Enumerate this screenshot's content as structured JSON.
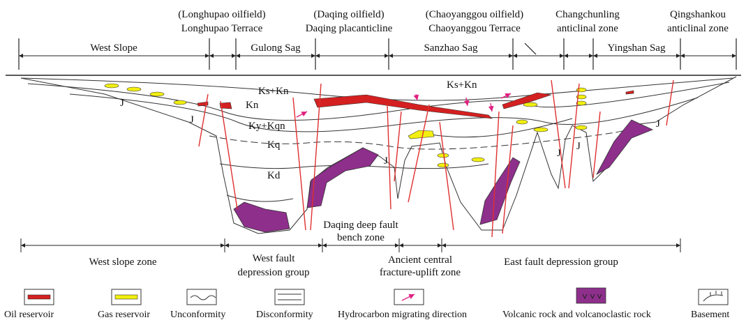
{
  "top_labels": [
    [
      "(Longhupao oilfield)",
      "Longhupao Terrace"
    ],
    [
      "(Daqing oilfield)",
      "Daqing placanticline"
    ],
    [
      "(Chaoyanggou oilfield)",
      "Chaoyanggou Terrace"
    ],
    [
      "Changchunling",
      "anticlinal zone"
    ],
    [
      "Qingshankou",
      "anticlinal zone"
    ]
  ],
  "units": [
    "West Slope",
    "Gulong Sag",
    "Sanzhao Sag",
    "Yingshan Sag"
  ],
  "strata": [
    "Ks+Kn",
    "Ks+Kn",
    "Kn",
    "Ky+Kqn",
    "Kq",
    "Kd",
    "J",
    "J",
    "J",
    "J",
    "J",
    "J"
  ],
  "zones": [
    [
      "West slope zone"
    ],
    [
      "West fault",
      "depression group"
    ],
    [
      "Daqing deep fault",
      "bench zone"
    ],
    [
      "Ancient central",
      "fracture-uplift zone"
    ],
    [
      "East fault depression group"
    ]
  ],
  "legend": [
    "Oil reservoir",
    "Gas reservoir",
    "Unconformity",
    "Disconformity",
    "Hydrocarbon migrating direction",
    "Volcanic rock and volcanoclastic rock",
    "Basement"
  ]
}
